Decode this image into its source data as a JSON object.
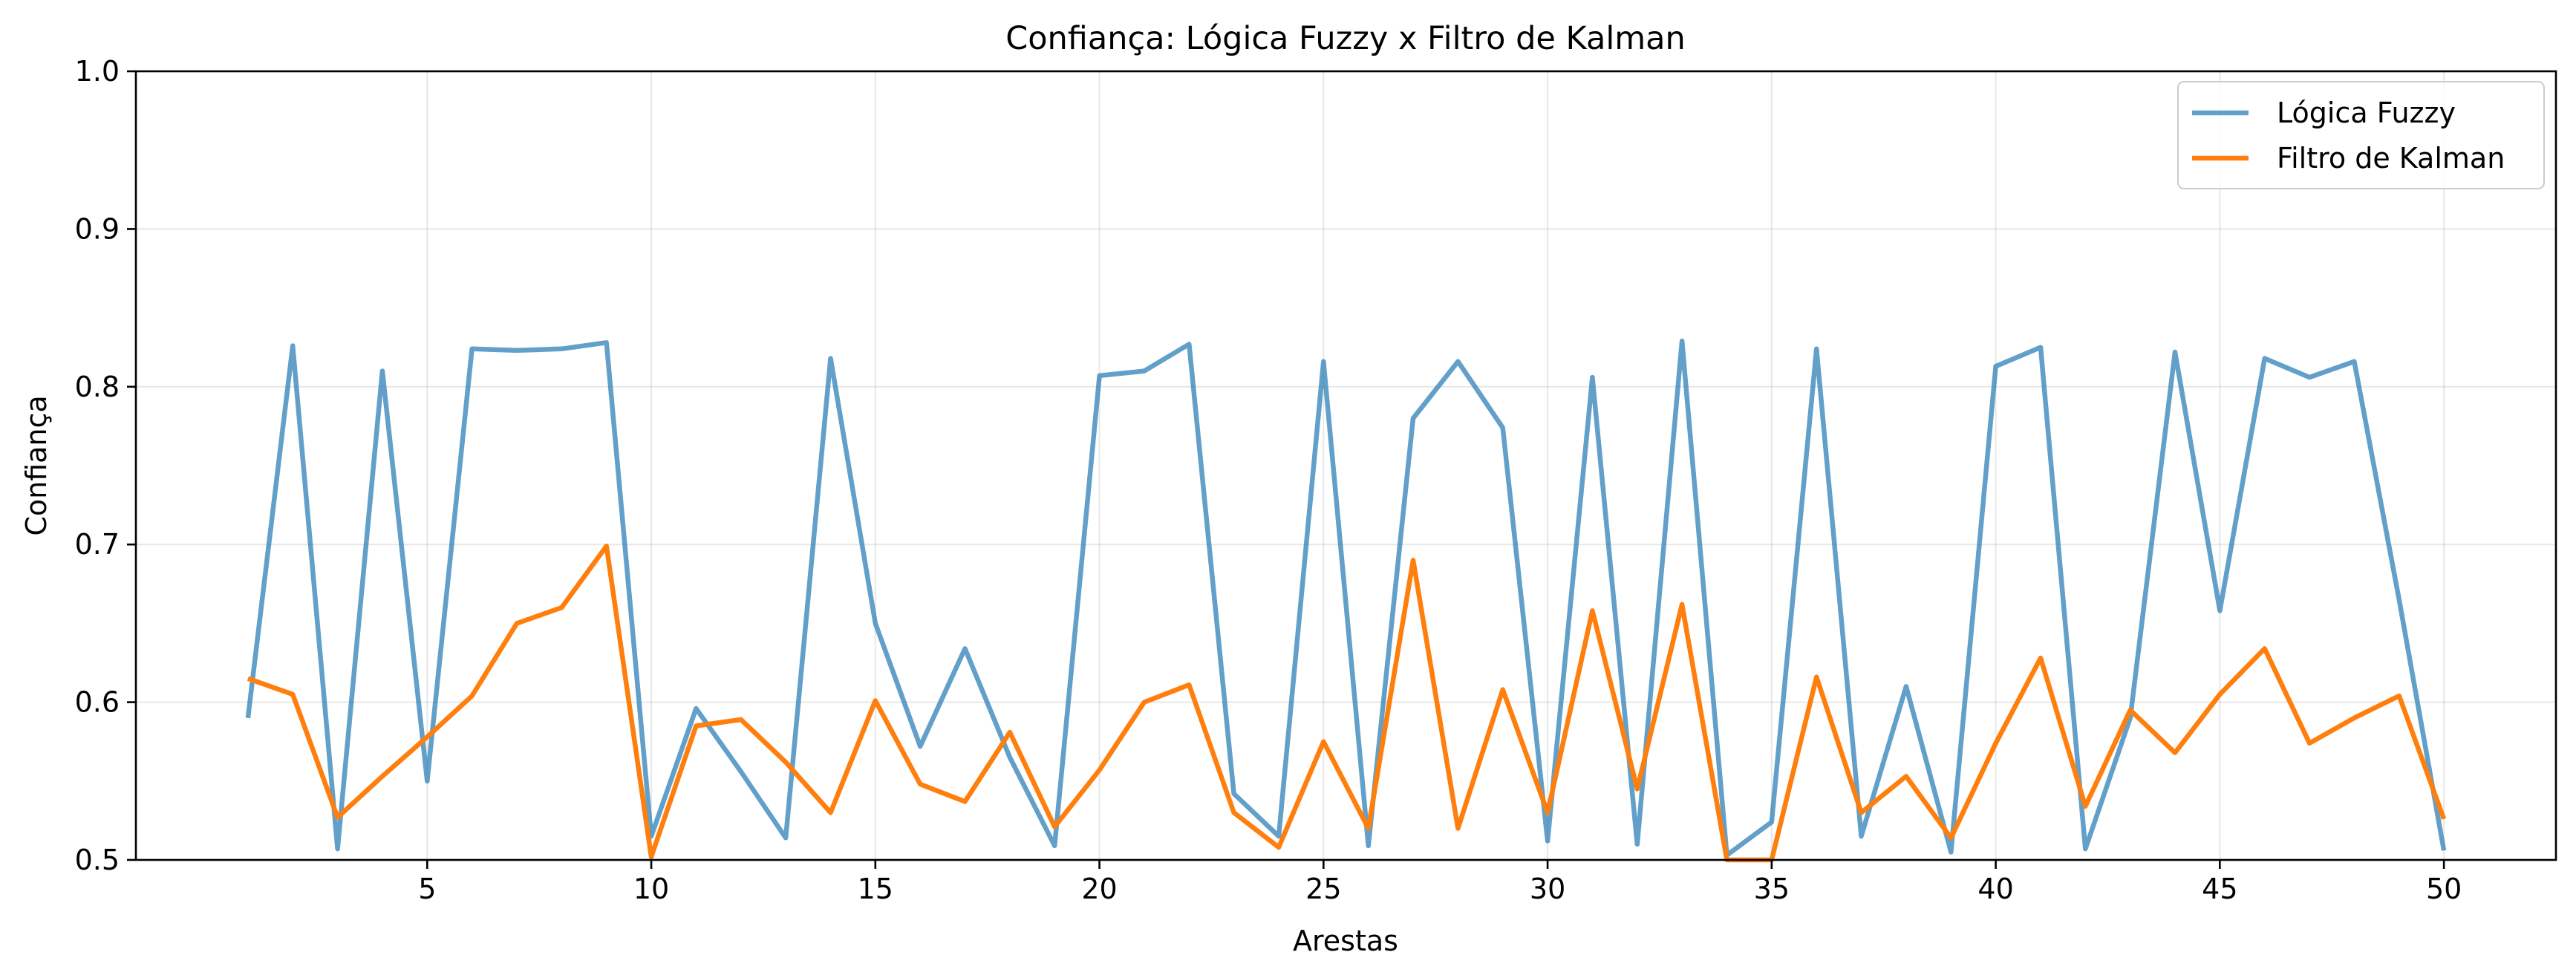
{
  "chart_data": {
    "type": "line",
    "title": "Confiança: Lógica Fuzzy x Filtro de Kalman",
    "xlabel": "Arestas",
    "ylabel": "Confiança",
    "xlim": [
      -1.5,
      52.5
    ],
    "ylim": [
      0.5,
      1.0
    ],
    "xticks": [
      5,
      10,
      15,
      20,
      25,
      30,
      35,
      40,
      45,
      50
    ],
    "xtick_labels": [
      "5",
      "10",
      "15",
      "20",
      "25",
      "30",
      "35",
      "40",
      "45",
      "50"
    ],
    "yticks": [
      0.5,
      0.6,
      0.7,
      0.8,
      0.9,
      1.0
    ],
    "ytick_labels": [
      "0.5",
      "0.6",
      "0.7",
      "0.8",
      "0.9",
      "1.0"
    ],
    "grid": true,
    "legend_position": "top-right",
    "x": [
      1,
      2,
      3,
      4,
      5,
      6,
      7,
      8,
      9,
      10,
      11,
      12,
      13,
      14,
      15,
      16,
      17,
      18,
      19,
      20,
      21,
      22,
      23,
      24,
      25,
      26,
      27,
      28,
      29,
      30,
      31,
      32,
      33,
      34,
      35,
      36,
      37,
      38,
      39,
      40,
      41,
      42,
      43,
      44,
      45,
      46,
      47,
      48,
      49,
      50
    ],
    "series": [
      {
        "name": "Lógica Fuzzy",
        "color": "#1f77b4",
        "opacity": 0.7,
        "values": [
          0.59,
          0.826,
          0.507,
          0.81,
          0.55,
          0.824,
          0.823,
          0.824,
          0.828,
          0.515,
          0.596,
          0.556,
          0.514,
          0.818,
          0.65,
          0.572,
          0.634,
          0.565,
          0.509,
          0.807,
          0.81,
          0.827,
          0.542,
          0.515,
          0.816,
          0.509,
          0.78,
          0.816,
          0.774,
          0.512,
          0.806,
          0.51,
          0.829,
          0.503,
          0.524,
          0.824,
          0.515,
          0.61,
          0.505,
          0.813,
          0.825,
          0.507,
          0.59,
          0.822,
          0.658,
          0.818,
          0.806,
          0.816,
          0.665,
          0.506
        ]
      },
      {
        "name": "Filtro de Kalman",
        "color": "#ff7f0e",
        "opacity": 1.0,
        "values": [
          0.615,
          0.605,
          0.527,
          0.553,
          0.578,
          0.604,
          0.65,
          0.66,
          0.699,
          0.502,
          0.585,
          0.589,
          0.562,
          0.53,
          0.601,
          0.548,
          0.537,
          0.581,
          0.521,
          0.557,
          0.6,
          0.611,
          0.53,
          0.508,
          0.575,
          0.52,
          0.69,
          0.52,
          0.608,
          0.53,
          0.658,
          0.545,
          0.662,
          0.5,
          0.5,
          0.616,
          0.53,
          0.553,
          0.514,
          0.574,
          0.628,
          0.534,
          0.595,
          0.568,
          0.605,
          0.634,
          0.574,
          0.59,
          0.604,
          0.526
        ]
      }
    ]
  }
}
